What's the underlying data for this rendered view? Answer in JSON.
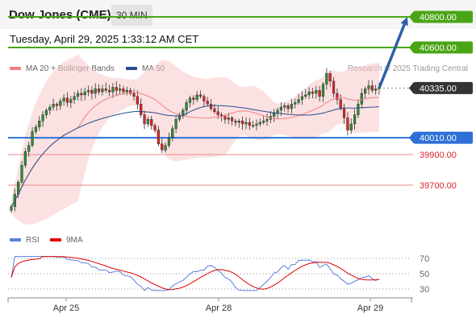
{
  "header": {
    "title": "Dow Jones (CME)",
    "timeframe": "30 MIN"
  },
  "datetime": "Tuesday, April 29, 2025 1:33:12 AM CET",
  "credit": "Research © 2025 Trading Central",
  "colors": {
    "resistance": "#4aa516",
    "support": "#2c6fd6",
    "target_red": "#d9252b",
    "current": "#333333",
    "arrow": "#2f5fa3",
    "bollinger": "#f8c8c8",
    "ma20": "#f08080",
    "ma50": "#2c4d8c",
    "rsi": "#5b7fdc",
    "rsi_ma": "#e00000"
  },
  "chart_data": [
    {
      "type": "candlestick",
      "legend": [
        {
          "name": "MA 20 + Bollinger Bands",
          "color": "#f08080"
        },
        {
          "name": "MA 50",
          "color": "#2c4d8c"
        }
      ],
      "x_ticks": [
        "Apr 25",
        "Apr 28",
        "Apr 29"
      ],
      "ylim": [
        39400,
        41000
      ],
      "levels": [
        {
          "label": "40800.00",
          "value": 40800,
          "kind": "resistance"
        },
        {
          "label": "40600.00",
          "value": 40600,
          "kind": "resistance"
        },
        {
          "label": "40335.00",
          "value": 40335,
          "kind": "current"
        },
        {
          "label": "40010.00",
          "value": 40010,
          "kind": "support"
        },
        {
          "label": "39900.00",
          "value": 39900,
          "kind": "target"
        },
        {
          "label": "39700.00",
          "value": 39700,
          "kind": "target"
        }
      ],
      "closes": [
        39560,
        39640,
        39720,
        39830,
        39920,
        39960,
        40050,
        40080,
        40120,
        40160,
        40190,
        40210,
        40230,
        40220,
        40250,
        40270,
        40240,
        40260,
        40280,
        40300,
        40290,
        40310,
        40320,
        40300,
        40330,
        40310,
        40330,
        40320,
        40310,
        40340,
        40320,
        40330,
        40310,
        40320,
        40300,
        40280,
        40230,
        40160,
        40100,
        40130,
        40090,
        40060,
        39970,
        39930,
        39960,
        40010,
        40070,
        40130,
        40160,
        40190,
        40240,
        40270,
        40260,
        40290,
        40280,
        40250,
        40230,
        40200,
        40180,
        40160,
        40150,
        40130,
        40140,
        40120,
        40110,
        40120,
        40100,
        40110,
        40090,
        40090,
        40100,
        40110,
        40120,
        40130,
        40150,
        40170,
        40190,
        40210,
        40220,
        40200,
        40230,
        40240,
        40260,
        40280,
        40290,
        40310,
        40300,
        40320,
        40280,
        40360,
        40430,
        40380,
        40300,
        40260,
        40200,
        40140,
        40060,
        40100,
        40160,
        40230,
        40300,
        40330,
        40350,
        40320,
        40330,
        40335
      ]
    },
    {
      "type": "line",
      "title": "RSI",
      "legend": [
        {
          "name": "RSI",
          "color": "#5b7fdc"
        },
        {
          "name": "9MA",
          "color": "#e00000"
        }
      ],
      "y_ticks": [
        70,
        50,
        30
      ],
      "ylim": [
        20,
        80
      ]
    }
  ]
}
